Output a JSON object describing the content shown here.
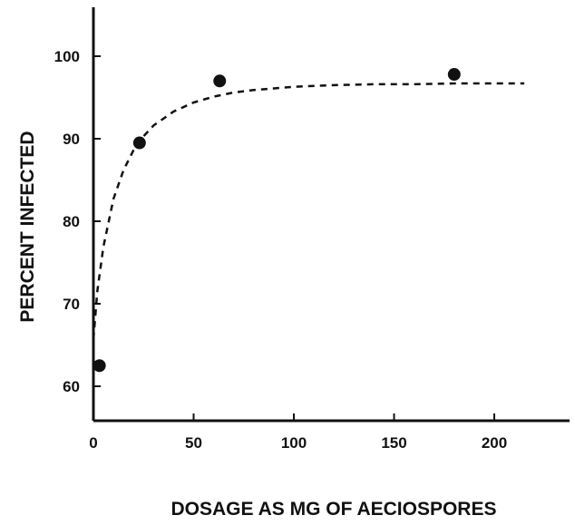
{
  "chart_data": {
    "type": "scatter",
    "title": "",
    "xlabel": "DOSAGE AS MG OF AECIOSPORES",
    "ylabel": "PERCENT INFECTED",
    "xlim": [
      0,
      235
    ],
    "ylim": [
      56,
      106
    ],
    "x_ticks": [
      0,
      50,
      100,
      150,
      200
    ],
    "y_ticks": [
      60,
      70,
      80,
      90,
      100
    ],
    "grid": false,
    "legend": "none",
    "series": [
      {
        "points": [
          {
            "x": 3,
            "y": 62.5
          },
          {
            "x": 23,
            "y": 89.5
          },
          {
            "x": 63,
            "y": 97
          },
          {
            "x": 180,
            "y": 97.8
          }
        ]
      }
    ],
    "fitted_curve": {
      "style": "dashed",
      "x": [
        0,
        2,
        5,
        10,
        15,
        20,
        25,
        30,
        40,
        50,
        60,
        70,
        80,
        100,
        120,
        140,
        160,
        180,
        200,
        215
      ],
      "y": [
        65.7,
        71.6,
        76.9,
        82.7,
        86.2,
        88.6,
        90.3,
        91.6,
        93.3,
        94.4,
        95.1,
        95.6,
        95.9,
        96.3,
        96.5,
        96.6,
        96.6,
        96.7,
        96.7,
        96.7
      ]
    }
  }
}
